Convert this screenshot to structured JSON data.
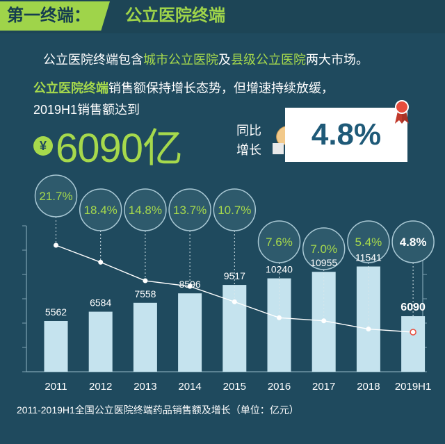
{
  "header": {
    "tag": "第一终端：",
    "title": "公立医院终端"
  },
  "intro": {
    "line1_prefix": "公立医院终端包含",
    "line1_hl1": "城市公立医院",
    "line1_mid": "及",
    "line1_hl2": "县级公立医院",
    "line1_suffix": "两大市场。",
    "line2_hl": "公立医院终端",
    "line2_rest": "销售额保持增长态势，但增速持续放缓，",
    "line3": "2019H1销售额达到"
  },
  "headline": {
    "currency": "¥",
    "value": "6090亿",
    "yoy_label": "同比增长",
    "growth": "4.8%"
  },
  "colors": {
    "background": "#1f4a5e",
    "accent": "#a6d94c",
    "bar": "#c5e3ee",
    "bubble": "#2e5a6c",
    "bubble_border": "#a9c8d4"
  },
  "icons": [
    "yuan-icon",
    "hand-pointing-icon",
    "ribbon-icon"
  ],
  "chart_data": {
    "type": "bar",
    "title": "",
    "categories": [
      "2011",
      "2012",
      "2013",
      "2014",
      "2015",
      "2016",
      "2017",
      "2018",
      "2019H1"
    ],
    "series": [
      {
        "values": [
          5562,
          6584,
          7558,
          8596,
          9517,
          10240,
          10955,
          11541,
          6090
        ]
      },
      {
        "type": "line",
        "values": [
          21.7,
          18.4,
          14.8,
          13.7,
          10.7,
          7.6,
          7.0,
          5.4,
          4.8
        ]
      }
    ],
    "bar_labels": [
      "5562",
      "6584",
      "7558",
      "8596",
      "9517",
      "10240",
      "10955",
      "11541",
      "6090"
    ],
    "growth_labels": [
      "21.7%",
      "18.4%",
      "14.8%",
      "13.7%",
      "10.7%",
      "7.6%",
      "7.0%",
      "5.4%",
      "4.8%"
    ],
    "grid": false,
    "legend": "none"
  },
  "caption": "2011-2019H1全国公立医院终端药品销售额及增长（单位：亿元）"
}
